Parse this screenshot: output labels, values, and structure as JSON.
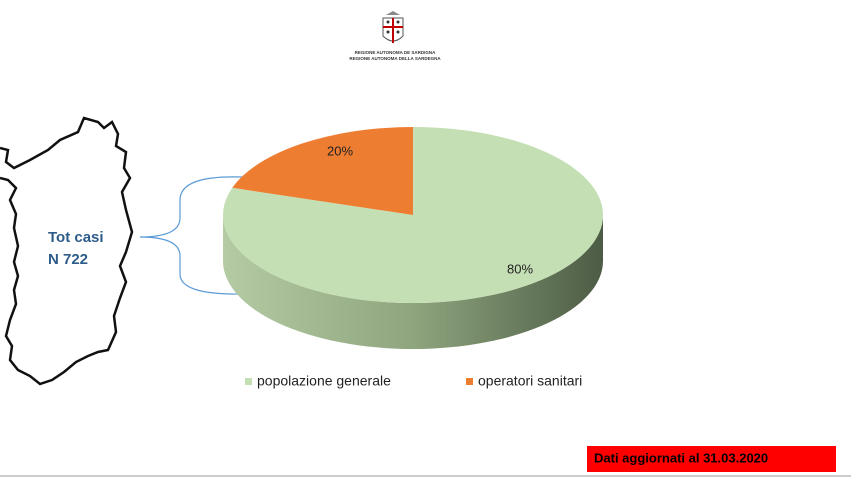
{
  "chart_data": {
    "type": "pie",
    "categories": [
      "popolazione generale",
      "operatori sanitari"
    ],
    "values": [
      80,
      20
    ],
    "value_labels": [
      "80%",
      "20%"
    ],
    "colors": [
      "#c5dfb4",
      "#ed7d31"
    ],
    "legend": "bottom",
    "annotations": [
      "Tot casi",
      "N 722"
    ],
    "footer_note": "Dati aggiornati al 31.03.2020",
    "logo_text": [
      "REGIONE AUTONOMA DE SARDIGNA",
      "REGIONE AUTONOMA DELLA SARDEGNA"
    ]
  }
}
